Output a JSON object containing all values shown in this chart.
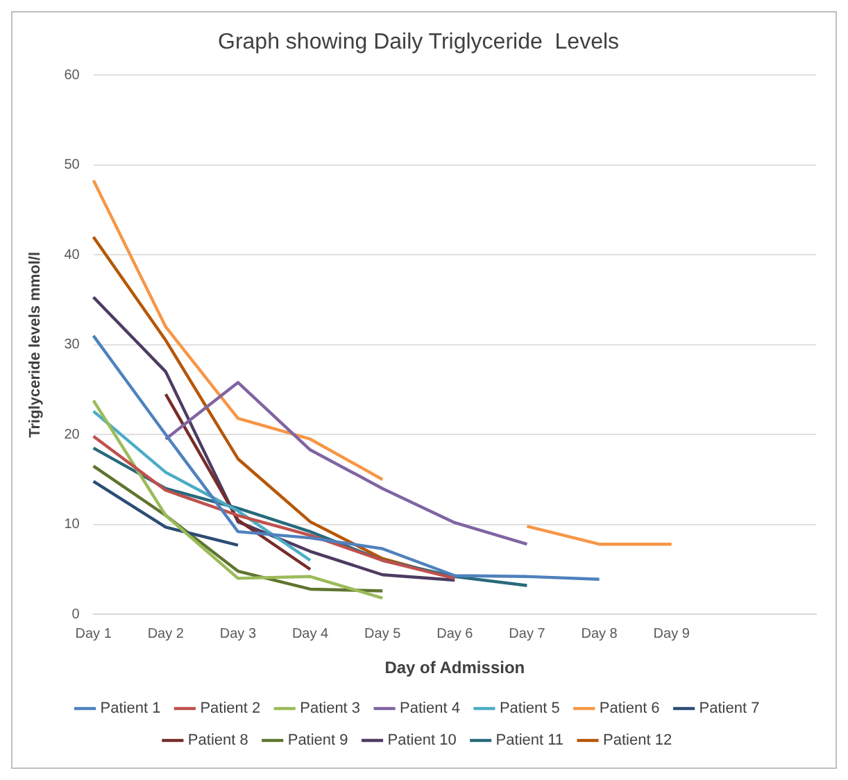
{
  "chart_data": {
    "type": "line",
    "title": "Graph showing Daily Triglyceride  Levels",
    "xlabel": "Day of Admission",
    "ylabel": "Triglyceride levels mmol/l",
    "categories": [
      "Day 1",
      "Day 2",
      "Day 3",
      "Day 4",
      "Day 5",
      "Day 6",
      "Day 7",
      "Day 8",
      "Day 9",
      null,
      null
    ],
    "ylim": [
      0,
      60
    ],
    "yticks": [
      0,
      10,
      20,
      30,
      40,
      50,
      60
    ],
    "grid": "y",
    "legend": "bottom",
    "marker": "none",
    "series": [
      {
        "name": "Patient 1",
        "color": "#4f81bd",
        "values": [
          31,
          20,
          9.2,
          8.5,
          7.3,
          4.3,
          4.2,
          3.9,
          null,
          null,
          null
        ]
      },
      {
        "name": "Patient 2",
        "color": "#c0504d",
        "values": [
          19.8,
          13.8,
          11,
          8.8,
          6,
          4,
          null,
          null,
          null,
          null,
          null
        ]
      },
      {
        "name": "Patient 3",
        "color": "#9bbb59",
        "values": [
          23.8,
          11,
          4,
          4.2,
          1.8,
          null,
          null,
          null,
          null,
          null,
          null
        ]
      },
      {
        "name": "Patient 4",
        "color": "#8064a2",
        "values": [
          null,
          19.5,
          25.8,
          18.3,
          14,
          10.2,
          7.8,
          null,
          null,
          null,
          null
        ]
      },
      {
        "name": "Patient 5",
        "color": "#4bacc6",
        "values": [
          22.6,
          15.8,
          11.5,
          6,
          null,
          null,
          null,
          null,
          null,
          null,
          null
        ]
      },
      {
        "name": "Patient 6",
        "color": "#f79646",
        "values": [
          48.3,
          32,
          21.8,
          19.5,
          15,
          null,
          9.8,
          7.8,
          7.8,
          null,
          null
        ]
      },
      {
        "name": "Patient 7",
        "color": "#2c4d75",
        "values": [
          14.8,
          9.7,
          7.7,
          null,
          null,
          null,
          null,
          null,
          null,
          null,
          null
        ]
      },
      {
        "name": "Patient 8",
        "color": "#772c2a",
        "values": [
          null,
          24.5,
          10.5,
          5,
          null,
          null,
          null,
          null,
          null,
          null,
          null
        ]
      },
      {
        "name": "Patient 9",
        "color": "#5f7530",
        "values": [
          16.5,
          11,
          4.8,
          2.8,
          2.6,
          null,
          null,
          null,
          null,
          null,
          null
        ]
      },
      {
        "name": "Patient 10",
        "color": "#4d3b62",
        "values": [
          35.3,
          27,
          10.3,
          7,
          4.4,
          3.8,
          null,
          null,
          null,
          null,
          null
        ]
      },
      {
        "name": "Patient 11",
        "color": "#276a7c",
        "values": [
          18.5,
          14,
          11.8,
          9.2,
          6,
          4.2,
          3.2,
          null,
          null,
          null,
          null
        ]
      },
      {
        "name": "Patient 12",
        "color": "#b65708",
        "values": [
          42,
          30.5,
          17.3,
          10.3,
          6.2,
          4,
          null,
          null,
          null,
          null,
          null
        ]
      }
    ]
  }
}
